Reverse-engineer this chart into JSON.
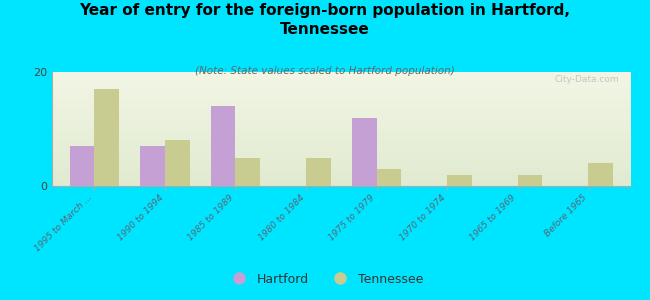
{
  "title": "Year of entry for the foreign-born population in Hartford,\nTennessee",
  "subtitle": "(Note: State values scaled to Hartford population)",
  "background_color": "#00e5ff",
  "plot_bg_top": "#f2f5e4",
  "plot_bg_bottom": "#eaf0dc",
  "categories": [
    "1995 to March ...",
    "1990 to 1994",
    "1985 to 1989",
    "1980 to 1984",
    "1975 to 1979",
    "1970 to 1974",
    "1965 to 1969",
    "Before 1965"
  ],
  "hartford_values": [
    7,
    7,
    14,
    0,
    12,
    0,
    0,
    0
  ],
  "tennessee_values": [
    17,
    8,
    5,
    5,
    3,
    2,
    2,
    4
  ],
  "hartford_color": "#c4a0d4",
  "tennessee_color": "#c8cc90",
  "ylim": [
    0,
    20
  ],
  "yticks": [
    0,
    20
  ],
  "bar_width": 0.35,
  "legend_labels": [
    "Hartford",
    "Tennessee"
  ],
  "watermark": "City-Data.com"
}
